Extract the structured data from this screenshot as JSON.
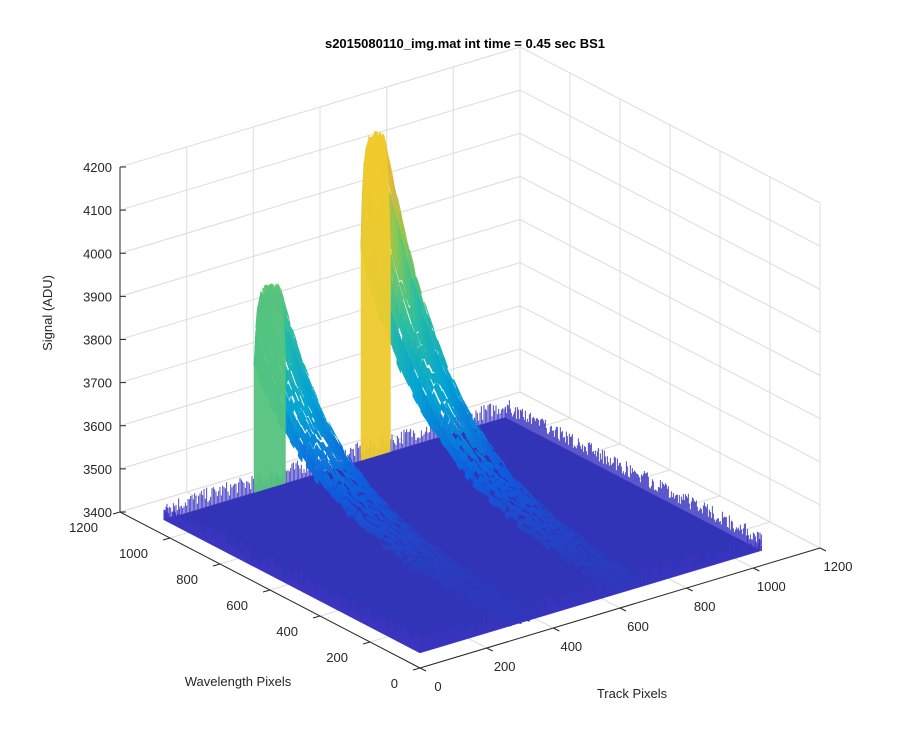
{
  "chart_data": {
    "type": "surface",
    "title": "s2015080110_img.mat int time = 0.45 sec   BS1",
    "xlabel": "Track Pixels",
    "ylabel": "Wavelength Pixels",
    "zlabel": "Signal (ADU)",
    "xlim": [
      0,
      1200
    ],
    "ylim": [
      0,
      1200
    ],
    "zlim": [
      3400,
      4200
    ],
    "xticks": [
      "0",
      "200",
      "400",
      "600",
      "800",
      "1000",
      "1200"
    ],
    "yticks": [
      "0",
      "200",
      "400",
      "600",
      "800",
      "1000",
      "1200"
    ],
    "zticks": [
      "3400",
      "3500",
      "3600",
      "3700",
      "3800",
      "3900",
      "4000",
      "4100",
      "4200"
    ],
    "grid": true,
    "colormap": [
      "#3e26a8",
      "#0f5ce0",
      "#03a3d4",
      "#2bbea0",
      "#86c855",
      "#e1b93a",
      "#f9d722"
    ],
    "baseline": 3435,
    "surface_extent": {
      "track": [
        0,
        1024
      ],
      "wavelength": [
        0,
        1024
      ]
    },
    "peaks": [
      {
        "track_start": 270,
        "track_end": 365,
        "wavelength_start": 1024,
        "peak_signal": 3900,
        "decay_length": 620
      },
      {
        "track_start": 590,
        "track_end": 680,
        "wavelength_start": 1024,
        "peak_signal": 4180,
        "decay_length": 660
      }
    ]
  }
}
